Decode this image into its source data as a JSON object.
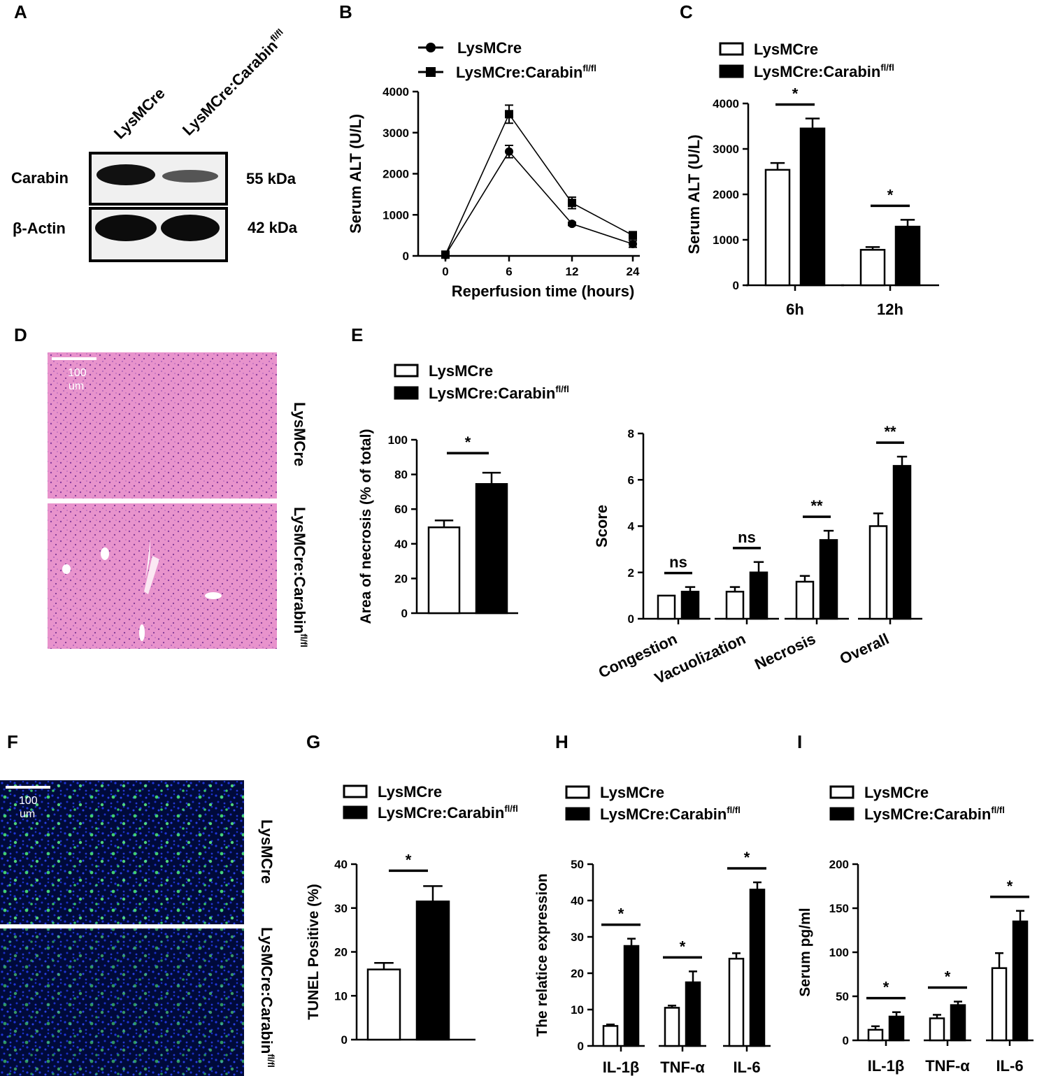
{
  "panels": {
    "A": "A",
    "B": "B",
    "C": "C",
    "D": "D",
    "E": "E",
    "F": "F",
    "G": "G",
    "H": "H",
    "I": "I"
  },
  "legend": {
    "ctrl": "LysMCre",
    "ko_base": "LysMCre:Carabin",
    "ko_sup": "fl/fl"
  },
  "western": {
    "lanes": [
      "LysMCre",
      "LysMCre:Carabin"
    ],
    "lane_sup": "fl/fl",
    "rows": [
      {
        "label": "Carabin",
        "size": "55 kDa"
      },
      {
        "label": "β-Actin",
        "size": "42 kDa"
      }
    ]
  },
  "histology": {
    "scale_label_1": "100",
    "scale_label_2": "um",
    "row_labels": [
      "LysMCre",
      "LysMCre:Carabin"
    ],
    "row_sup": "fl/fl"
  },
  "tunel_images": {
    "scale_label_1": "100",
    "scale_label_2": "um",
    "row_labels": [
      "LysMCre",
      "LysMCre:Carabin"
    ],
    "row_sup": "fl/fl"
  },
  "colors": {
    "ctrl": "#ffffff",
    "ko": "#000000",
    "he": "#e58fc8",
    "dapi": "#1e2fd0",
    "tunel": "#4cf07a"
  },
  "chart_data": [
    {
      "id": "B",
      "type": "line",
      "xlabel": "Reperfusion time (hours)",
      "ylabel": "Serum ALT (U/L)",
      "x": [
        0,
        6,
        12,
        24
      ],
      "ylim": [
        0,
        4000
      ],
      "yticks": [
        0,
        1000,
        2000,
        3000,
        4000
      ],
      "series": [
        {
          "name": "LysMCre",
          "values": [
            20,
            2540,
            780,
            290
          ],
          "err": [
            0,
            150,
            40,
            80
          ]
        },
        {
          "name": "LysMCre:Carabin fl/fl",
          "values": [
            30,
            3450,
            1290,
            500
          ],
          "err": [
            0,
            220,
            140,
            90
          ]
        }
      ]
    },
    {
      "id": "C",
      "type": "bar",
      "categories": [
        "6h",
        "12h"
      ],
      "xlabel": "",
      "ylabel": "Serum ALT (U/L)",
      "ylim": [
        0,
        4000
      ],
      "yticks": [
        0,
        1000,
        2000,
        3000,
        4000
      ],
      "series": [
        {
          "name": "LysMCre",
          "values": [
            2540,
            780
          ],
          "err": [
            150,
            60
          ]
        },
        {
          "name": "LysMCre:Carabin fl/fl",
          "values": [
            3450,
            1290
          ],
          "err": [
            220,
            150
          ]
        }
      ],
      "sig": [
        "*",
        "*"
      ]
    },
    {
      "id": "E1",
      "type": "bar",
      "categories": [
        ""
      ],
      "xlabel": "",
      "ylabel": "Area of necrosis (% of total)",
      "ylim": [
        0,
        100
      ],
      "yticks": [
        0,
        20,
        40,
        60,
        80,
        100
      ],
      "series": [
        {
          "name": "LysMCre",
          "values": [
            49.5
          ],
          "err": [
            4
          ]
        },
        {
          "name": "LysMCre:Carabin fl/fl",
          "values": [
            74.5
          ],
          "err": [
            6.5
          ]
        }
      ],
      "sig": [
        "*"
      ]
    },
    {
      "id": "E2",
      "type": "bar",
      "categories": [
        "Congestion",
        "Vacuolization",
        "Necrosis",
        "Overall"
      ],
      "xlabel": "",
      "ylabel": "Score",
      "ylim": [
        0,
        8
      ],
      "yticks": [
        0,
        2,
        4,
        6,
        8
      ],
      "series": [
        {
          "name": "LysMCre",
          "values": [
            1.0,
            1.17,
            1.6,
            4.0
          ],
          "err": [
            0,
            0.2,
            0.25,
            0.55
          ]
        },
        {
          "name": "LysMCre:Carabin fl/fl",
          "values": [
            1.17,
            2.0,
            3.4,
            6.6
          ],
          "err": [
            0.2,
            0.45,
            0.4,
            0.4
          ]
        }
      ],
      "sig": [
        "ns",
        "ns",
        "**",
        "**"
      ]
    },
    {
      "id": "G",
      "type": "bar",
      "categories": [
        ""
      ],
      "xlabel": "",
      "ylabel": "TUNEL Positive (%)",
      "ylim": [
        0,
        40
      ],
      "yticks": [
        0,
        10,
        20,
        30,
        40
      ],
      "series": [
        {
          "name": "LysMCre",
          "values": [
            16
          ],
          "err": [
            1.5
          ]
        },
        {
          "name": "LysMCre:Carabin fl/fl",
          "values": [
            31.5
          ],
          "err": [
            3.5
          ]
        }
      ],
      "sig": [
        "*"
      ]
    },
    {
      "id": "H",
      "type": "bar",
      "categories": [
        "IL-1β",
        "TNF-α",
        "IL-6"
      ],
      "xlabel": "",
      "ylabel": "The relatice expression",
      "ylim": [
        0,
        50
      ],
      "yticks": [
        0,
        10,
        20,
        30,
        40,
        50
      ],
      "series": [
        {
          "name": "LysMCre",
          "values": [
            5.5,
            10.5,
            24
          ],
          "err": [
            0.4,
            0.6,
            1.5
          ]
        },
        {
          "name": "LysMCre:Carabin fl/fl",
          "values": [
            27.5,
            17.5,
            43
          ],
          "err": [
            2,
            3,
            2
          ]
        }
      ],
      "sig": [
        "*",
        "*",
        "*"
      ]
    },
    {
      "id": "I",
      "type": "bar",
      "categories": [
        "IL-1β",
        "TNF-α",
        "IL-6"
      ],
      "xlabel": "",
      "ylabel": "Serum pg/ml",
      "ylim": [
        0,
        200
      ],
      "yticks": [
        0,
        50,
        100,
        150,
        200
      ],
      "series": [
        {
          "name": "LysMCre",
          "values": [
            12,
            25,
            82
          ],
          "err": [
            4,
            4,
            17
          ]
        },
        {
          "name": "LysMCre:Carabin fl/fl",
          "values": [
            27,
            40,
            135
          ],
          "err": [
            5,
            4,
            12
          ]
        }
      ],
      "sig": [
        "*",
        "*",
        "*"
      ]
    }
  ]
}
